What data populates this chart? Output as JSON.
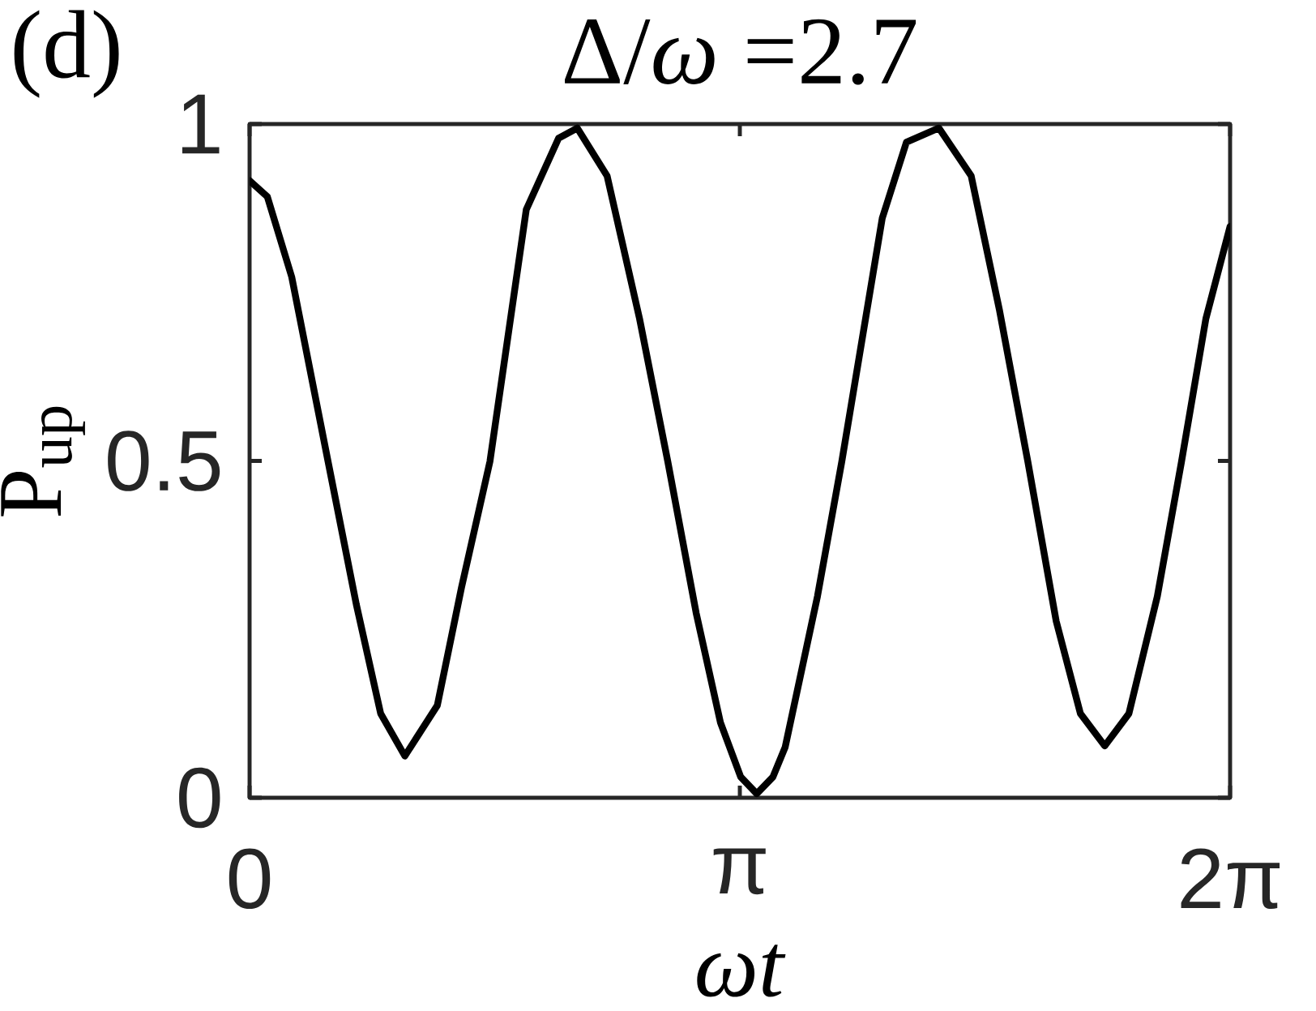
{
  "chart_data": {
    "type": "line",
    "title": "Δ/*ω* =2.7",
    "xlabel": "*ωt*",
    "ylabel": "P$_{up}$",
    "annotations": [
      "(d)"
    ],
    "color": "#000000",
    "x": [
      0,
      0.114,
      0.27,
      0.503,
      0.684,
      0.84,
      0.995,
      1.203,
      1.358,
      1.54,
      1.773,
      1.98,
      2.1,
      2.291,
      2.499,
      2.68,
      2.862,
      3.017,
      3.147,
      3.25,
      3.354,
      3.432,
      3.639,
      3.795,
      4.054,
      4.209,
      4.417,
      4.624,
      4.806,
      4.987,
      5.169,
      5.324,
      5.48,
      5.635,
      5.817,
      5.972,
      6.128,
      6.283
    ],
    "values": [
      0.916,
      0.892,
      0.773,
      0.499,
      0.287,
      0.125,
      0.062,
      0.137,
      0.312,
      0.499,
      0.873,
      0.979,
      0.994,
      0.923,
      0.711,
      0.499,
      0.274,
      0.112,
      0.031,
      0.006,
      0.031,
      0.075,
      0.299,
      0.499,
      0.86,
      0.973,
      0.994,
      0.923,
      0.723,
      0.499,
      0.262,
      0.125,
      0.077,
      0.125,
      0.299,
      0.499,
      0.711,
      0.848
    ],
    "xlim": [
      0,
      6.2832
    ],
    "ylim": [
      0,
      1
    ],
    "xticks": [
      0,
      {
        "value": 3.1416,
        "label": "π"
      },
      {
        "value": 6.2832,
        "label": "2π"
      }
    ],
    "yticks": [
      0,
      0.5,
      1
    ]
  }
}
